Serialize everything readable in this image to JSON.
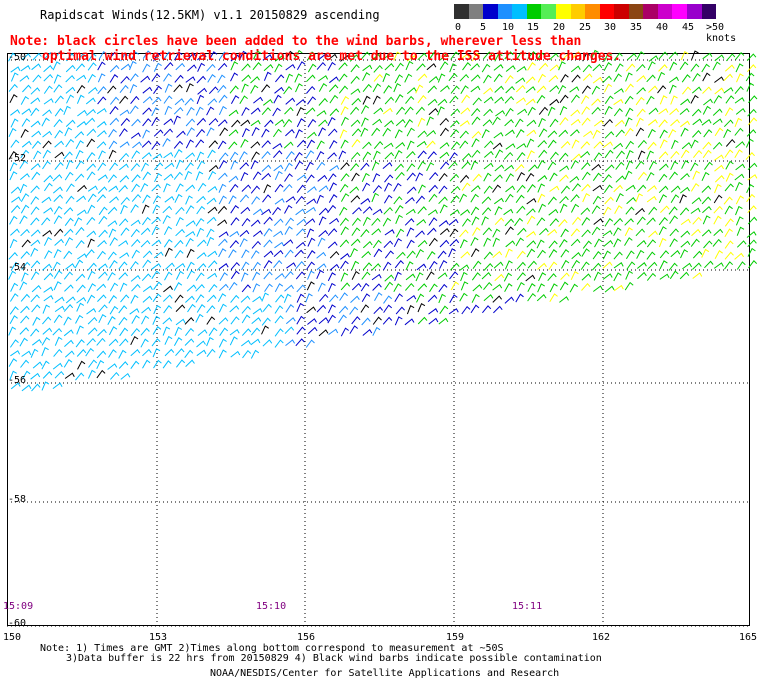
{
  "header": {
    "title": "Rapidscat Winds(12.5KM) v1.1 20150829 ascending",
    "note_line1": "Note: black circles have been added to the wind barbs, wherever less than",
    "note_line2": "optimal wind retrieval conditions are met due to the ISS attitude changes."
  },
  "legend": {
    "colors": [
      "#303030",
      "#7f7f7f",
      "#0000cc",
      "#1e90ff",
      "#00bfff",
      "#00cc00",
      "#55ee55",
      "#ffff00",
      "#ffcc00",
      "#ff8c00",
      "#ff0000",
      "#cc0000",
      "#8b4513",
      "#aa0066",
      "#cc00cc",
      "#ff00ff",
      "#9900cc",
      "#330066"
    ],
    "labels": [
      "0",
      "5",
      "10",
      "15",
      "20",
      "25",
      "30",
      "35",
      "40",
      "45",
      ">50 knots"
    ]
  },
  "map": {
    "lat_labels": [
      "-50",
      "-52",
      "-54",
      "-56",
      "-58",
      "-60"
    ],
    "lon_labels": [
      "150",
      "153",
      "156",
      "159",
      "162",
      "165"
    ],
    "time_labels": [
      "15:09",
      "15:10",
      "15:11"
    ]
  },
  "footer": {
    "note_a": "Note: 1) Times are GMT 2)Times along bottom correspond to measurement at ~50S",
    "note_b": "3)Data buffer is 22 hrs from 20150829 4) Black wind barbs indicate possible contamination",
    "credit": "NOAA/NESDIS/Center for Satellite Applications and Research"
  }
}
